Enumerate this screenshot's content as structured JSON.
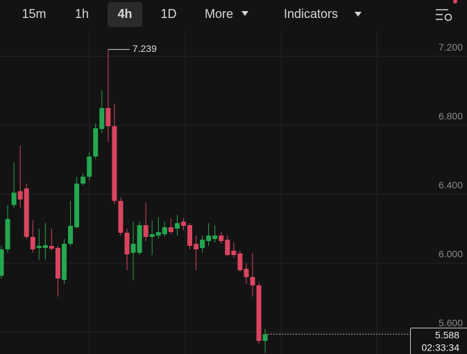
{
  "toolbar": {
    "intervals": [
      "15m",
      "1h",
      "4h",
      "1D"
    ],
    "active": "4h",
    "more": "More",
    "indicators": "Indicators"
  },
  "chart_data": {
    "type": "candlestick",
    "open": [
      5.927,
      6.08,
      6.337,
      6.417,
      6.433,
      6.152,
      6.088,
      6.088,
      6.1,
      6.088,
      5.903,
      6.112,
      6.208,
      6.461,
      6.501,
      6.618,
      6.778,
      6.899,
      6.794,
      6.361,
      6.176,
      6.06,
      6.06,
      6.22,
      6.152,
      6.16,
      6.168,
      6.208,
      6.2,
      6.24,
      6.22,
      6.112,
      6.088,
      6.128,
      6.14,
      6.16,
      6.136,
      6.072,
      6.056,
      5.967,
      5.919,
      5.871,
      5.549
    ],
    "high": [
      6.1,
      6.337,
      6.582,
      6.682,
      6.461,
      6.248,
      6.2,
      6.232,
      6.2,
      6.1,
      6.14,
      6.361,
      6.501,
      6.521,
      6.642,
      6.81,
      7.003,
      7.239,
      6.923,
      6.381,
      6.2,
      6.24,
      6.24,
      6.349,
      6.248,
      6.268,
      6.24,
      6.26,
      6.28,
      6.26,
      6.232,
      6.16,
      6.16,
      6.232,
      6.22,
      6.18,
      6.16,
      6.12,
      6.072,
      5.999,
      6.06,
      5.887,
      5.618
    ],
    "low": [
      5.911,
      6.06,
      6.321,
      6.321,
      6.14,
      6.06,
      6.019,
      6.019,
      6.072,
      5.806,
      5.879,
      6.1,
      6.2,
      6.449,
      6.481,
      6.602,
      6.754,
      6.702,
      6.341,
      6.16,
      5.959,
      5.899,
      6.047,
      6.128,
      6.047,
      6.14,
      6.152,
      6.168,
      6.16,
      6.192,
      6.08,
      5.959,
      6.06,
      6.1,
      6.12,
      6.112,
      6.039,
      6.031,
      5.951,
      5.879,
      5.806,
      5.533,
      5.48
    ],
    "close": [
      6.08,
      6.256,
      6.409,
      6.369,
      6.152,
      6.08,
      6.1,
      6.104,
      6.084,
      5.911,
      6.112,
      6.216,
      6.461,
      6.501,
      6.618,
      6.782,
      6.899,
      6.794,
      6.361,
      6.176,
      6.051,
      6.112,
      6.22,
      6.152,
      6.168,
      6.18,
      6.208,
      6.18,
      6.232,
      6.216,
      6.1,
      6.08,
      6.136,
      6.16,
      6.16,
      6.128,
      6.047,
      6.047,
      5.959,
      5.919,
      5.871,
      5.549,
      5.588
    ],
    "up_color": "#25a750",
    "down_color": "#d9455f",
    "ylim": [
      5.473,
      7.345
    ],
    "yticks": [
      {
        "value": 5.6,
        "label": "5.600"
      },
      {
        "value": 6.0,
        "label": "6.000"
      },
      {
        "value": 6.4,
        "label": "6.400"
      },
      {
        "value": 6.8,
        "label": "6.800"
      },
      {
        "value": 7.2,
        "label": "7.200"
      }
    ],
    "grid": true,
    "countdown": "02:33:34"
  }
}
